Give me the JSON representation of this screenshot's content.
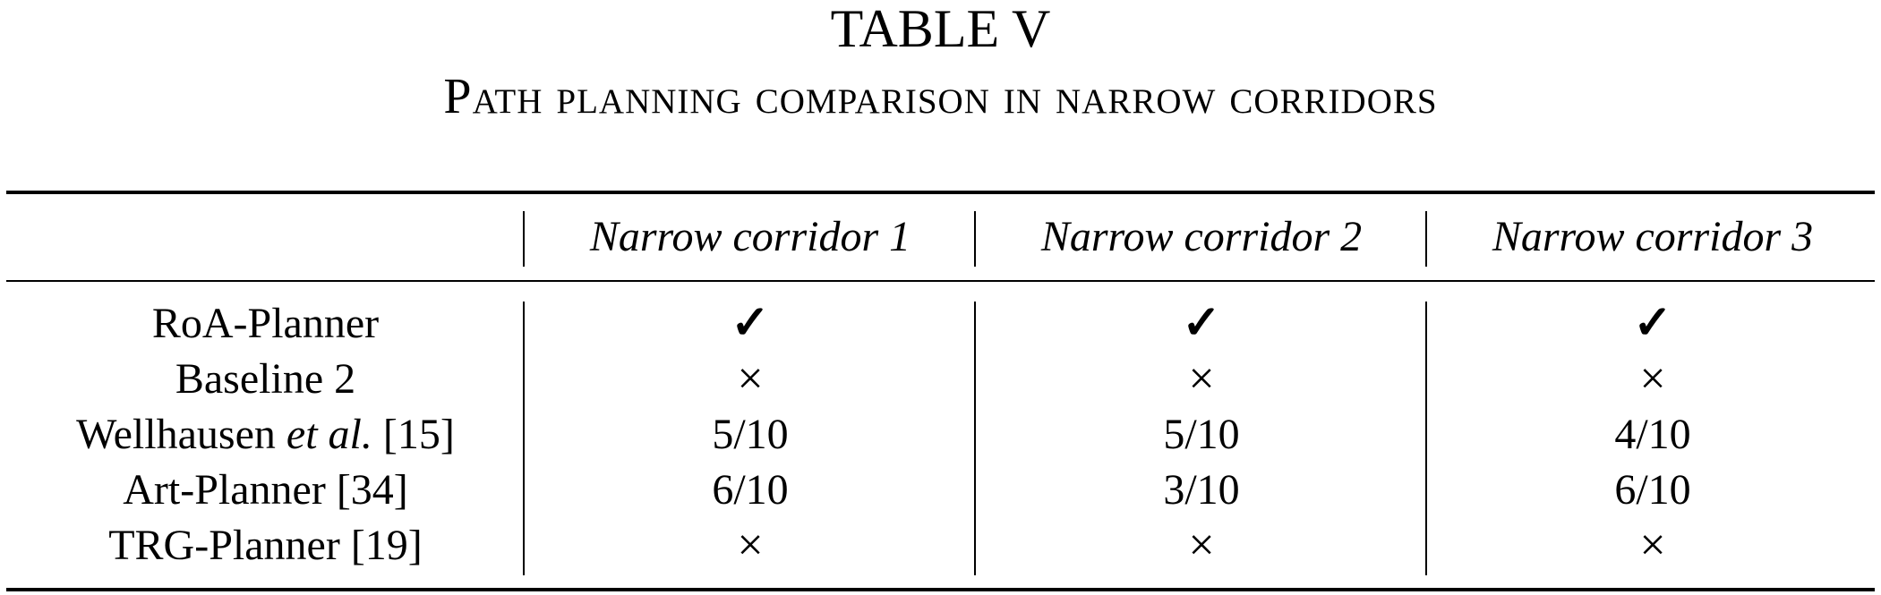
{
  "table": {
    "label": "TABLE V",
    "caption": "Path planning comparison in narrow corridors",
    "columns": [
      "",
      "Narrow corridor 1",
      "Narrow corridor 2",
      "Narrow corridor 3"
    ],
    "rows": [
      {
        "method": "RoA-Planner",
        "cells": [
          "✓",
          "✓",
          "✓"
        ]
      },
      {
        "method": "Baseline 2",
        "cells": [
          "×",
          "×",
          "×"
        ]
      },
      {
        "method_prefix": "Wellhausen ",
        "method_italic": "et al.",
        "method_suffix": " [15]",
        "cells": [
          "5/10",
          "5/10",
          "4/10"
        ]
      },
      {
        "method": "Art-Planner [34]",
        "cells": [
          "6/10",
          "3/10",
          "6/10"
        ]
      },
      {
        "method": "TRG-Planner [19]",
        "cells": [
          "×",
          "×",
          "×"
        ]
      }
    ]
  }
}
